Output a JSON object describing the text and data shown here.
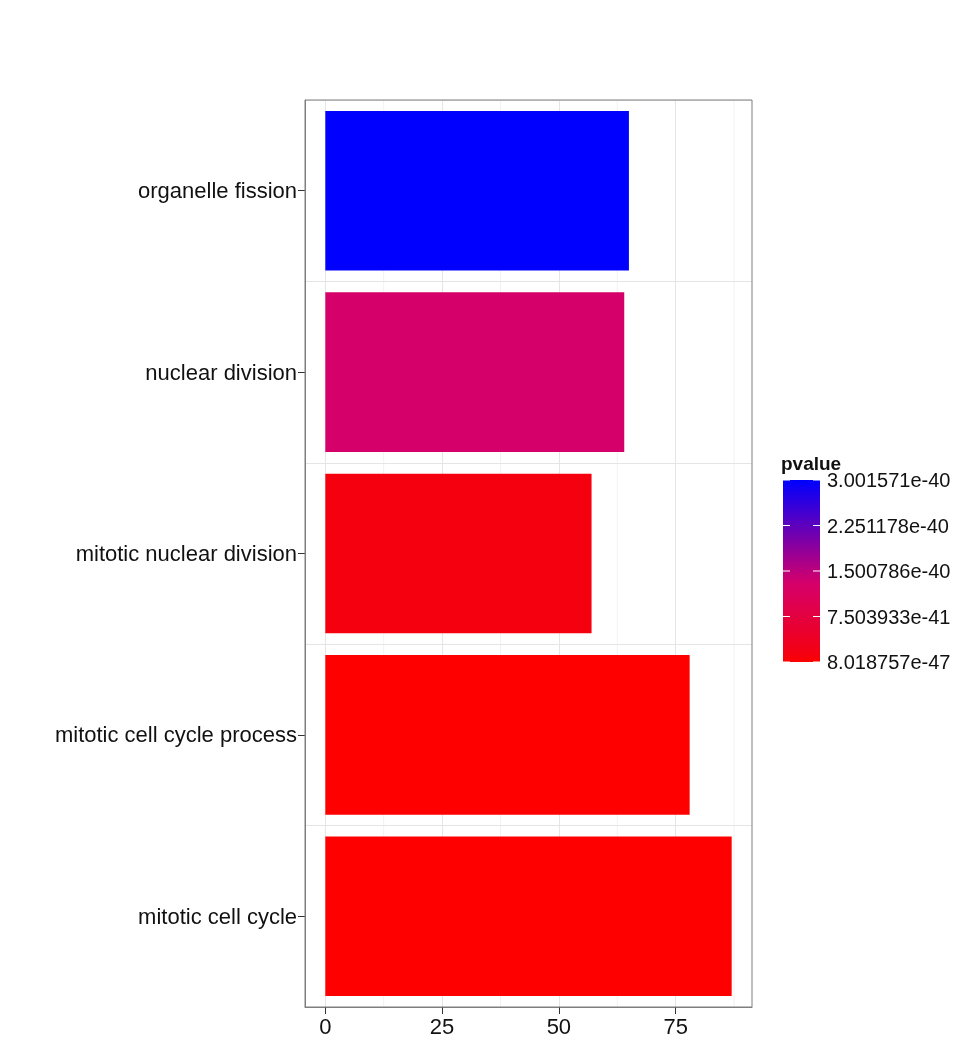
{
  "chart_data": {
    "type": "bar",
    "orientation": "horizontal",
    "categories": [
      "organelle fission",
      "nuclear division",
      "mitotic nuclear division",
      "mitotic cell cycle process",
      "mitotic cell cycle"
    ],
    "values": [
      65,
      64,
      57,
      78,
      87
    ],
    "cvalues": [
      3.001571e-40,
      1.3e-40,
      1e-41,
      1e-45,
      8.018757e-47
    ],
    "colors": [
      "#0000ff",
      "#d5006a",
      "#f5000e",
      "#fe0000",
      "#ff0000"
    ],
    "clabel": "pvalue",
    "clim": [
      8.018757e-47,
      3.001571e-40
    ],
    "cticks": [
      {
        "value": 8.018757e-47,
        "label": "8.018757e-47"
      },
      {
        "value": 7.503933e-41,
        "label": "7.503933e-41"
      },
      {
        "value": 1.500786e-40,
        "label": "1.500786e-40"
      },
      {
        "value": 2.251178e-40,
        "label": "2.251178e-40"
      },
      {
        "value": 3.001571e-40,
        "label": "3.001571e-40"
      }
    ],
    "xlim": [
      -4.35,
      91.35
    ],
    "xticks": [
      0,
      25,
      50,
      75,
      {
        "value": 12.5,
        "label": null
      },
      {
        "value": 37.5,
        "label": null
      },
      {
        "value": 62.5,
        "label": null
      },
      {
        "value": 87.5,
        "label": null
      }
    ],
    "grid": true
  }
}
